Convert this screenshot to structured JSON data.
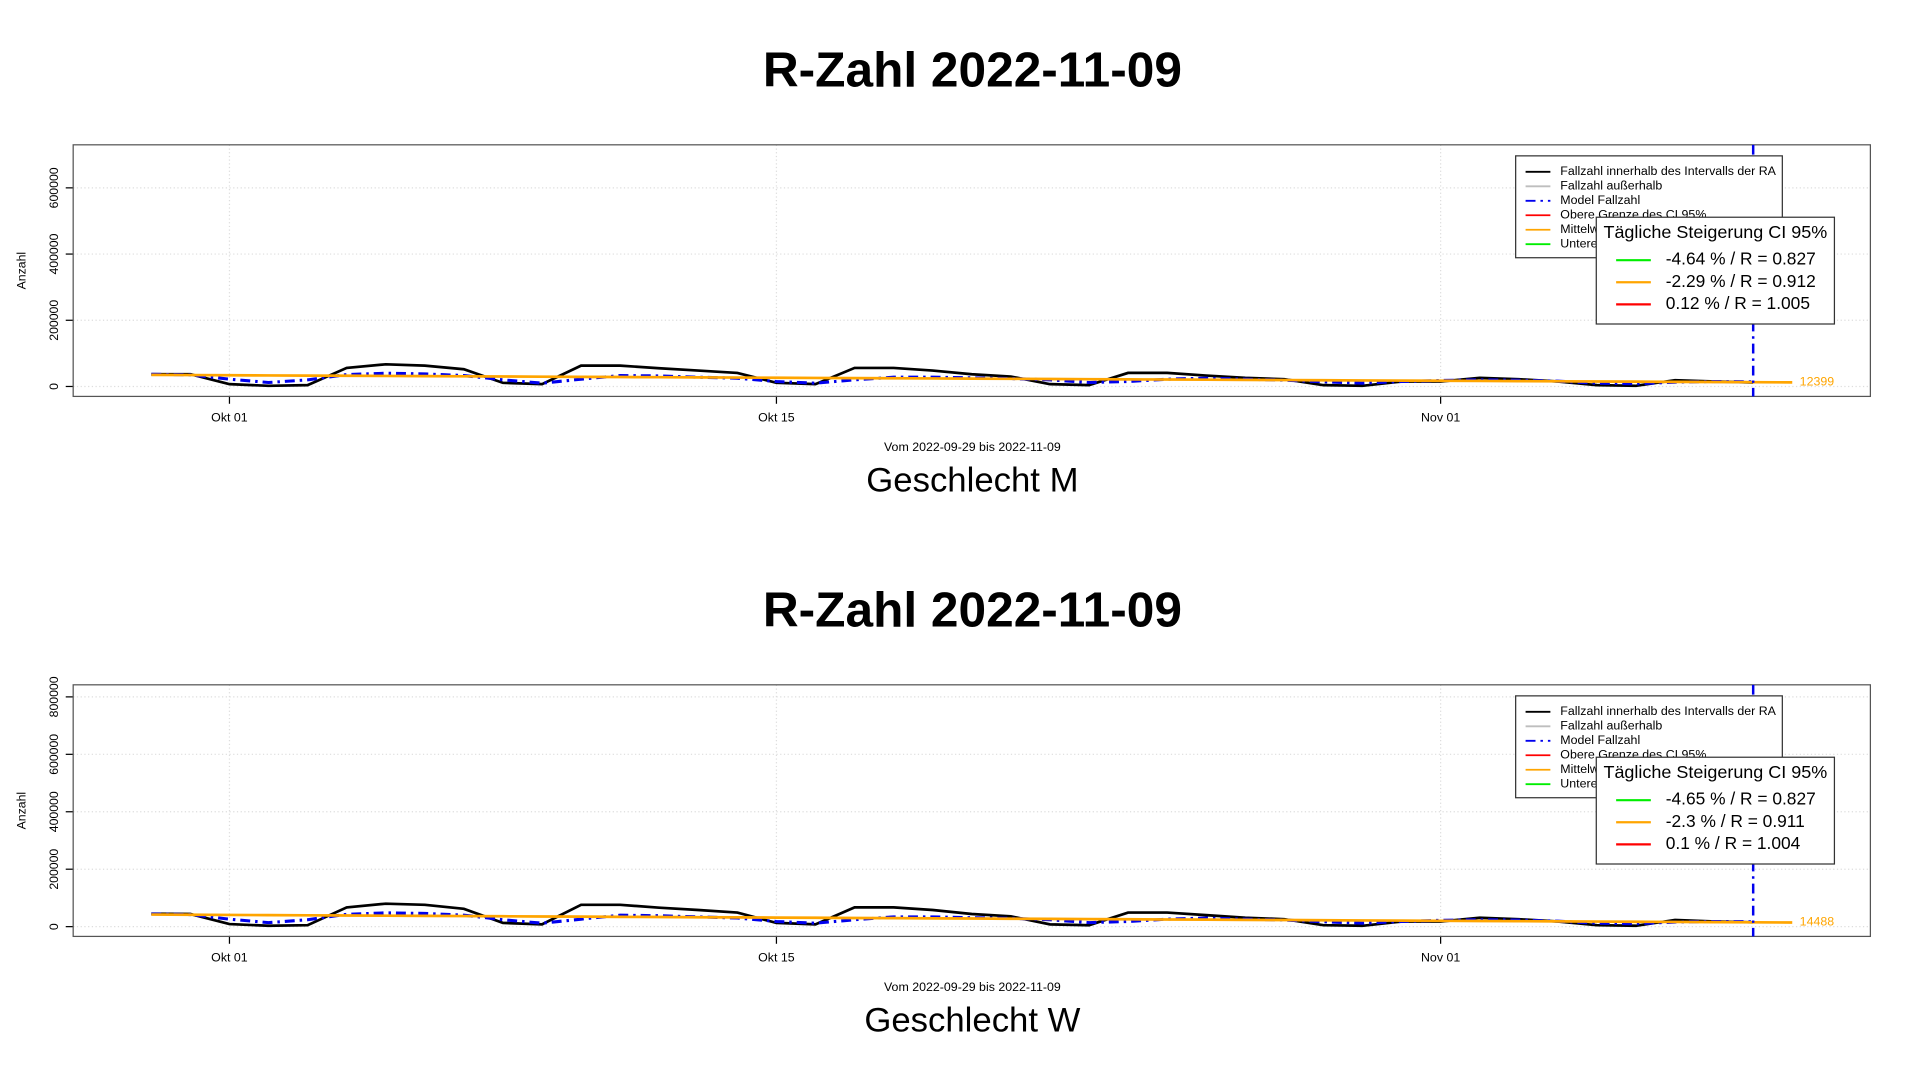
{
  "chart_data": [
    {
      "type": "line",
      "title": "R-Zahl 2022-11-09",
      "subtitle": "Vom 2022-09-29 bis 2022-11-09",
      "caption": "Geschlecht M",
      "ylabel": "Anzahl",
      "x": [
        "2022-09-29",
        "2022-09-30",
        "2022-10-01",
        "2022-10-02",
        "2022-10-03",
        "2022-10-04",
        "2022-10-05",
        "2022-10-06",
        "2022-10-07",
        "2022-10-08",
        "2022-10-09",
        "2022-10-10",
        "2022-10-11",
        "2022-10-12",
        "2022-10-13",
        "2022-10-14",
        "2022-10-15",
        "2022-10-16",
        "2022-10-17",
        "2022-10-18",
        "2022-10-19",
        "2022-10-20",
        "2022-10-21",
        "2022-10-22",
        "2022-10-23",
        "2022-10-24",
        "2022-10-25",
        "2022-10-26",
        "2022-10-27",
        "2022-10-28",
        "2022-10-29",
        "2022-10-30",
        "2022-10-31",
        "2022-11-01",
        "2022-11-02",
        "2022-11-03",
        "2022-11-04",
        "2022-11-05",
        "2022-11-06",
        "2022-11-07",
        "2022-11-08",
        "2022-11-09",
        "2022-11-10"
      ],
      "xlim": [
        "2022-09-27",
        "2022-11-12"
      ],
      "xticks": [
        {
          "value": "2022-10-01",
          "label": "Okt 01"
        },
        {
          "value": "2022-10-15",
          "label": "Okt 15"
        },
        {
          "value": "2022-11-01",
          "label": "Nov 01"
        }
      ],
      "ylim": [
        -30000,
        730000
      ],
      "yticks": [
        0,
        200000,
        400000,
        600000
      ],
      "grid": true,
      "vline": "2022-11-09",
      "series": [
        {
          "name": "Fallzahl innerhalb des Intervalls der RA",
          "color": "#000000",
          "dash": "solid",
          "width": 2.2,
          "values": [
            37000,
            37000,
            7000,
            2000,
            4000,
            56000,
            67000,
            63000,
            52000,
            11000,
            7000,
            63000,
            63000,
            55000,
            48000,
            41000,
            11000,
            7000,
            56000,
            56000,
            48000,
            37000,
            30000,
            7000,
            4000,
            41000,
            41000,
            33000,
            26000,
            22000,
            4000,
            2000,
            15000,
            15000,
            26000,
            22000,
            15000,
            4000,
            2000,
            19000,
            15000,
            12000,
            null
          ]
        },
        {
          "name": "Model Fallzahl",
          "color": "#0000ee",
          "dash": "dashdot",
          "width": 2.5,
          "values": [
            37000,
            35000,
            22000,
            12000,
            20000,
            36000,
            40000,
            38000,
            33000,
            20000,
            10000,
            22000,
            33000,
            32000,
            28000,
            25000,
            15000,
            10000,
            20000,
            28000,
            28000,
            26000,
            24000,
            20000,
            12000,
            15000,
            22000,
            25000,
            22000,
            19000,
            14000,
            10000,
            15000,
            18000,
            20000,
            19000,
            16000,
            10000,
            8000,
            13000,
            15000,
            14000,
            null
          ]
        },
        {
          "name": "Mittelw",
          "color": "#ffa500",
          "dash": "solid",
          "width": 2.2,
          "values": [
            35000,
            34462,
            33924,
            33386,
            32848,
            32310,
            31772,
            31233,
            30695,
            30157,
            29619,
            29081,
            28543,
            28005,
            27467,
            26929,
            26391,
            25853,
            25315,
            24777,
            24238,
            23700,
            23162,
            22624,
            22086,
            21548,
            21010,
            20472,
            19934,
            19396,
            18858,
            18320,
            17782,
            17243,
            16705,
            16167,
            15629,
            15091,
            14553,
            14015,
            13477,
            12939,
            12399
          ]
        }
      ],
      "legend_entries": [
        {
          "name": "Fallzahl außerhalb",
          "color": "#bebebe"
        },
        {
          "name": "Obere Grenze des CI 95%",
          "color": "#ff0000"
        },
        {
          "name": "Untere",
          "color": "#00ee00"
        }
      ],
      "ci_box": {
        "title": "Tägliche Steigerung CI  95%",
        "entries": [
          {
            "text": "-4.64 % / R = 0.827",
            "color": "#00ee00"
          },
          {
            "text": "-2.29 % / R = 0.912",
            "color": "#ffa500"
          },
          {
            "text": "0.12 % / R = 1.005",
            "color": "#ff0000"
          }
        ]
      }
    },
    {
      "type": "line",
      "title": "R-Zahl 2022-11-09",
      "subtitle": "Vom 2022-09-29 bis 2022-11-09",
      "caption": "Geschlecht W",
      "ylabel": "Anzahl",
      "x": [
        "2022-09-29",
        "2022-09-30",
        "2022-10-01",
        "2022-10-02",
        "2022-10-03",
        "2022-10-04",
        "2022-10-05",
        "2022-10-06",
        "2022-10-07",
        "2022-10-08",
        "2022-10-09",
        "2022-10-10",
        "2022-10-11",
        "2022-10-12",
        "2022-10-13",
        "2022-10-14",
        "2022-10-15",
        "2022-10-16",
        "2022-10-17",
        "2022-10-18",
        "2022-10-19",
        "2022-10-20",
        "2022-10-21",
        "2022-10-22",
        "2022-10-23",
        "2022-10-24",
        "2022-10-25",
        "2022-10-26",
        "2022-10-27",
        "2022-10-28",
        "2022-10-29",
        "2022-10-30",
        "2022-10-31",
        "2022-11-01",
        "2022-11-02",
        "2022-11-03",
        "2022-11-04",
        "2022-11-05",
        "2022-11-06",
        "2022-11-07",
        "2022-11-08",
        "2022-11-09",
        "2022-11-10"
      ],
      "xlim": [
        "2022-09-27",
        "2022-11-12"
      ],
      "xticks": [
        {
          "value": "2022-10-01",
          "label": "Okt 01"
        },
        {
          "value": "2022-10-15",
          "label": "Okt 15"
        },
        {
          "value": "2022-11-01",
          "label": "Nov 01"
        }
      ],
      "ylim": [
        -34000,
        842000
      ],
      "yticks": [
        0,
        200000,
        400000,
        600000,
        800000
      ],
      "grid": true,
      "vline": "2022-11-09",
      "series": [
        {
          "name": "Fallzahl innerhalb des Intervalls der RA",
          "color": "#000000",
          "dash": "solid",
          "width": 2.2,
          "values": [
            45000,
            44000,
            9000,
            3000,
            5000,
            67000,
            80000,
            76000,
            62000,
            13000,
            8000,
            76000,
            76000,
            66000,
            58000,
            49000,
            13000,
            8000,
            67000,
            67000,
            58000,
            44000,
            36000,
            8000,
            5000,
            49000,
            49000,
            40000,
            31000,
            26000,
            5000,
            3000,
            18000,
            18000,
            31000,
            26000,
            18000,
            5000,
            3000,
            23000,
            18000,
            15000,
            null
          ]
        },
        {
          "name": "Model Fallzahl",
          "color": "#0000ee",
          "dash": "dashdot",
          "width": 2.5,
          "values": [
            44000,
            42000,
            26000,
            14000,
            24000,
            43000,
            48000,
            46000,
            40000,
            24000,
            12000,
            26000,
            40000,
            38000,
            34000,
            30000,
            18000,
            12000,
            24000,
            34000,
            34000,
            31000,
            29000,
            24000,
            14000,
            18000,
            26000,
            30000,
            26000,
            23000,
            17000,
            12000,
            18000,
            22000,
            24000,
            23000,
            19000,
            12000,
            10000,
            16000,
            18000,
            17000,
            null
          ]
        },
        {
          "name": "Mittelw",
          "color": "#ffa500",
          "dash": "solid",
          "width": 2.2,
          "values": [
            42000,
            41345,
            40690,
            40035,
            39380,
            38725,
            38070,
            37415,
            36760,
            36105,
            35450,
            34795,
            34140,
            33485,
            32830,
            32175,
            31520,
            30865,
            30210,
            29555,
            28900,
            28245,
            27590,
            26935,
            26280,
            25625,
            24970,
            24315,
            23660,
            23005,
            22350,
            21695,
            21040,
            20385,
            19730,
            19075,
            18420,
            17765,
            17110,
            16455,
            15800,
            15145,
            14488
          ]
        }
      ],
      "legend_entries": [
        {
          "name": "Fallzahl außerhalb",
          "color": "#bebebe"
        },
        {
          "name": "Obere Grenze des CI 95%",
          "color": "#ff0000"
        },
        {
          "name": "Untere",
          "color": "#00ee00"
        }
      ],
      "ci_box": {
        "title": "Tägliche Steigerung CI  95%",
        "entries": [
          {
            "text": "-4.65 % / R = 0.827",
            "color": "#00ee00"
          },
          {
            "text": "-2.3 % / R = 0.911",
            "color": "#ffa500"
          },
          {
            "text": "0.1 % / R = 1.004",
            "color": "#ff0000"
          }
        ]
      }
    }
  ]
}
